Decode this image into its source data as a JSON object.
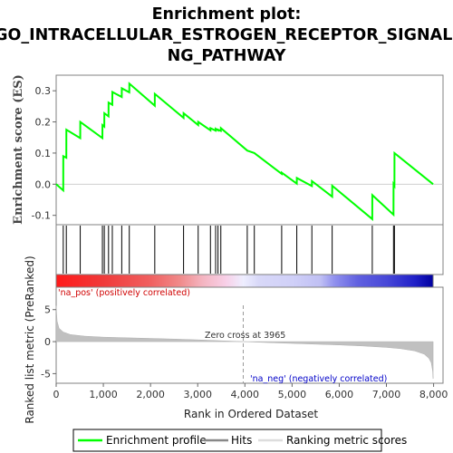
{
  "title_lines": [
    "Enrichment plot:",
    "GO_INTRACELLULAR_ESTROGEN_RECEPTOR_SIGNALI",
    "NG_PATHWAY"
  ],
  "colors": {
    "profile": "#00ff00",
    "hits": "#000000",
    "metric_fill": "#c0c0c0",
    "pos_text": "#d00000",
    "neg_text": "#0000c8",
    "frame": "#808080"
  },
  "legend": {
    "profile_label": "Enrichment profile",
    "hits_label": "Hits",
    "metric_label": "Ranking metric scores"
  },
  "annotations": {
    "pos_label": "'na_pos' (positively correlated)",
    "neg_label": "'na_neg' (negatively correlated)",
    "zero_cross_label": "Zero cross at 3965"
  },
  "chart_data": {
    "type": "line",
    "title": "Enrichment plot: GO_INTRACELLULAR_ESTROGEN_RECEPTOR_SIGNALING_PATHWAY",
    "xlabel": "Rank in Ordered Dataset",
    "ylabel_top": "Enrichment score (ES)",
    "ylabel_bottom": "Ranked list metric (PreRanked)",
    "xlim": [
      0,
      8200
    ],
    "es_ylim": [
      -0.13,
      0.35
    ],
    "es_yticks": [
      "0.3",
      "0.2",
      "0.1",
      "0.0",
      "-0.1"
    ],
    "es_ytick_values": [
      0.3,
      0.2,
      0.1,
      0.0,
      -0.1
    ],
    "xticks": [
      "0",
      "1,000",
      "2,000",
      "3,000",
      "4,000",
      "5,000",
      "6,000",
      "7,000",
      "8,000"
    ],
    "xtick_values": [
      0,
      1000,
      2000,
      3000,
      4000,
      5000,
      6000,
      7000,
      8000
    ],
    "metric_ylim": [
      -6.5,
      8.5
    ],
    "metric_yticks": [
      "5",
      "0",
      "-5"
    ],
    "metric_ytick_values": [
      5,
      0,
      -5
    ],
    "zero_cross": 3965,
    "n_genes": 7990,
    "hits": [
      150,
      215,
      510,
      980,
      1020,
      1110,
      1190,
      1390,
      1550,
      2090,
      2700,
      3010,
      3270,
      3380,
      3430,
      3490,
      4050,
      4200,
      4780,
      5100,
      5420,
      5850,
      6700,
      7150,
      7170
    ],
    "es_points": [
      [
        0,
        0.0
      ],
      [
        150,
        -0.02
      ],
      [
        151,
        0.09
      ],
      [
        215,
        0.085
      ],
      [
        216,
        0.175
      ],
      [
        510,
        0.148
      ],
      [
        511,
        0.2
      ],
      [
        980,
        0.148
      ],
      [
        981,
        0.19
      ],
      [
        1020,
        0.185
      ],
      [
        1021,
        0.228
      ],
      [
        1110,
        0.218
      ],
      [
        1111,
        0.262
      ],
      [
        1190,
        0.255
      ],
      [
        1191,
        0.296
      ],
      [
        1390,
        0.28
      ],
      [
        1391,
        0.308
      ],
      [
        1550,
        0.295
      ],
      [
        1551,
        0.323
      ],
      [
        2090,
        0.252
      ],
      [
        2091,
        0.29
      ],
      [
        2700,
        0.213
      ],
      [
        2701,
        0.228
      ],
      [
        3010,
        0.19
      ],
      [
        3011,
        0.2
      ],
      [
        3270,
        0.173
      ],
      [
        3271,
        0.18
      ],
      [
        3380,
        0.172
      ],
      [
        3381,
        0.178
      ],
      [
        3430,
        0.173
      ],
      [
        3431,
        0.175
      ],
      [
        3490,
        0.171
      ],
      [
        3491,
        0.18
      ],
      [
        4050,
        0.108
      ],
      [
        4200,
        0.1
      ],
      [
        4780,
        0.033
      ],
      [
        4781,
        0.037
      ],
      [
        5100,
        0.002
      ],
      [
        5101,
        0.02
      ],
      [
        5420,
        -0.006
      ],
      [
        5421,
        0.01
      ],
      [
        5850,
        -0.04
      ],
      [
        5851,
        -0.005
      ],
      [
        6700,
        -0.112
      ],
      [
        6701,
        -0.035
      ],
      [
        7150,
        -0.098
      ],
      [
        7151,
        0.0
      ],
      [
        7170,
        -0.005
      ],
      [
        7171,
        0.1
      ],
      [
        7990,
        0.0
      ]
    ],
    "metric_profile": [
      [
        0,
        5.6
      ],
      [
        20,
        3.2
      ],
      [
        60,
        2.1
      ],
      [
        150,
        1.5
      ],
      [
        300,
        1.1
      ],
      [
        600,
        0.85
      ],
      [
        1000,
        0.7
      ],
      [
        1500,
        0.6
      ],
      [
        2000,
        0.5
      ],
      [
        2500,
        0.4
      ],
      [
        3000,
        0.28
      ],
      [
        3500,
        0.13
      ],
      [
        3965,
        0.0
      ],
      [
        4500,
        -0.15
      ],
      [
        5000,
        -0.28
      ],
      [
        5500,
        -0.4
      ],
      [
        6000,
        -0.52
      ],
      [
        6500,
        -0.68
      ],
      [
        7000,
        -0.9
      ],
      [
        7300,
        -1.1
      ],
      [
        7600,
        -1.45
      ],
      [
        7800,
        -1.95
      ],
      [
        7900,
        -2.6
      ],
      [
        7950,
        -3.3
      ],
      [
        7980,
        -4.6
      ],
      [
        7990,
        -5.8
      ]
    ],
    "colorbar_stops": [
      [
        0,
        "#ff1a1a"
      ],
      [
        1000,
        "#f03a3a"
      ],
      [
        2000,
        "#f06060"
      ],
      [
        2600,
        "#f08888"
      ],
      [
        3100,
        "#f4b4c0"
      ],
      [
        3600,
        "#f8d0e8"
      ],
      [
        3965,
        "#eeeeff"
      ],
      [
        4300,
        "#d8d8f8"
      ],
      [
        5000,
        "#d0d0f8"
      ],
      [
        5600,
        "#c0c0f4"
      ],
      [
        5900,
        "#9090ee"
      ],
      [
        6400,
        "#6060e0"
      ],
      [
        7000,
        "#4848d8"
      ],
      [
        7600,
        "#2020c8"
      ],
      [
        7990,
        "#0000a0"
      ]
    ]
  }
}
